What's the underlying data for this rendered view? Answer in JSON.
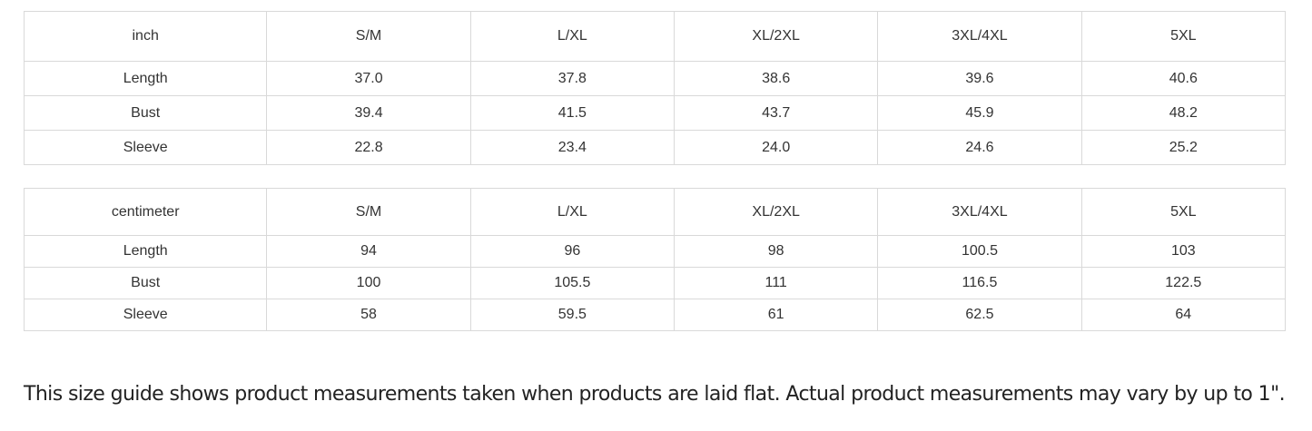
{
  "tables": [
    {
      "unit": "inch",
      "sizes": [
        "S/M",
        "L/XL",
        "XL/2XL",
        "3XL/4XL",
        "5XL"
      ],
      "rows": [
        {
          "label": "Length",
          "values": [
            "37.0",
            "37.8",
            "38.6",
            "39.6",
            "40.6"
          ]
        },
        {
          "label": "Bust",
          "values": [
            "39.4",
            "41.5",
            "43.7",
            "45.9",
            "48.2"
          ]
        },
        {
          "label": "Sleeve",
          "values": [
            "22.8",
            "23.4",
            "24.0",
            "24.6",
            "25.2"
          ]
        }
      ]
    },
    {
      "unit": "centimeter",
      "sizes": [
        "S/M",
        "L/XL",
        "XL/2XL",
        "3XL/4XL",
        "5XL"
      ],
      "rows": [
        {
          "label": "Length",
          "values": [
            "94",
            "96",
            "98",
            "100.5",
            "103"
          ]
        },
        {
          "label": "Bust",
          "values": [
            "100",
            "105.5",
            "111",
            "116.5",
            "122.5"
          ]
        },
        {
          "label": "Sleeve",
          "values": [
            "58",
            "59.5",
            "61",
            "62.5",
            "64"
          ]
        }
      ]
    }
  ],
  "note": "This size guide shows product measurements taken when products are laid flat. Actual product measurements may vary by up to 1\"."
}
